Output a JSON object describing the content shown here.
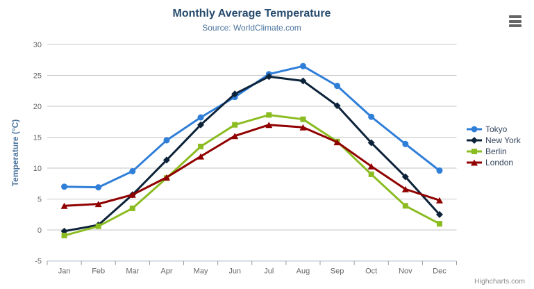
{
  "header": {
    "title": "Monthly Average Temperature",
    "subtitle": "Source: WorldClimate.com"
  },
  "credits_label": "Highcharts.com",
  "chart_data": {
    "type": "line",
    "title": "Monthly Average Temperature",
    "subtitle": "Source: WorldClimate.com",
    "xlabel": "",
    "ylabel": "Temperature (°C)",
    "categories": [
      "Jan",
      "Feb",
      "Mar",
      "Apr",
      "May",
      "Jun",
      "Jul",
      "Aug",
      "Sep",
      "Oct",
      "Nov",
      "Dec"
    ],
    "ylim": [
      -5,
      30
    ],
    "ytick_step": 5,
    "yticks": [
      -5,
      0,
      5,
      10,
      15,
      20,
      25,
      30
    ],
    "grid": true,
    "legend_position": "right",
    "series": [
      {
        "name": "Tokyo",
        "color": "#2f7ed8",
        "marker": "circle",
        "values": [
          7.0,
          6.9,
          9.5,
          14.5,
          18.2,
          21.5,
          25.2,
          26.5,
          23.3,
          18.3,
          13.9,
          9.6
        ]
      },
      {
        "name": "New York",
        "color": "#0d233a",
        "marker": "diamond",
        "values": [
          -0.2,
          0.8,
          5.7,
          11.3,
          17.0,
          22.0,
          24.8,
          24.1,
          20.1,
          14.1,
          8.6,
          2.5
        ]
      },
      {
        "name": "Berlin",
        "color": "#8bbc21",
        "marker": "square",
        "values": [
          -0.9,
          0.6,
          3.5,
          8.4,
          13.5,
          17.0,
          18.6,
          17.9,
          14.3,
          9.0,
          3.9,
          1.0
        ]
      },
      {
        "name": "London",
        "color": "#910000",
        "marker": "triangle",
        "values": [
          3.9,
          4.2,
          5.7,
          8.5,
          11.9,
          15.2,
          17.0,
          16.6,
          14.2,
          10.3,
          6.6,
          4.8
        ]
      }
    ]
  },
  "colors": {
    "title_text": "#274b6d",
    "subtitle_text": "#4d759e",
    "axis_label_text": "#666666",
    "grid_line": "#c6c6c6",
    "axis_line": "#c0d0e0",
    "tick_mark": "#999999",
    "legend_text": "#33435c",
    "credits_text": "#909090",
    "menu_icon": "#666666"
  }
}
